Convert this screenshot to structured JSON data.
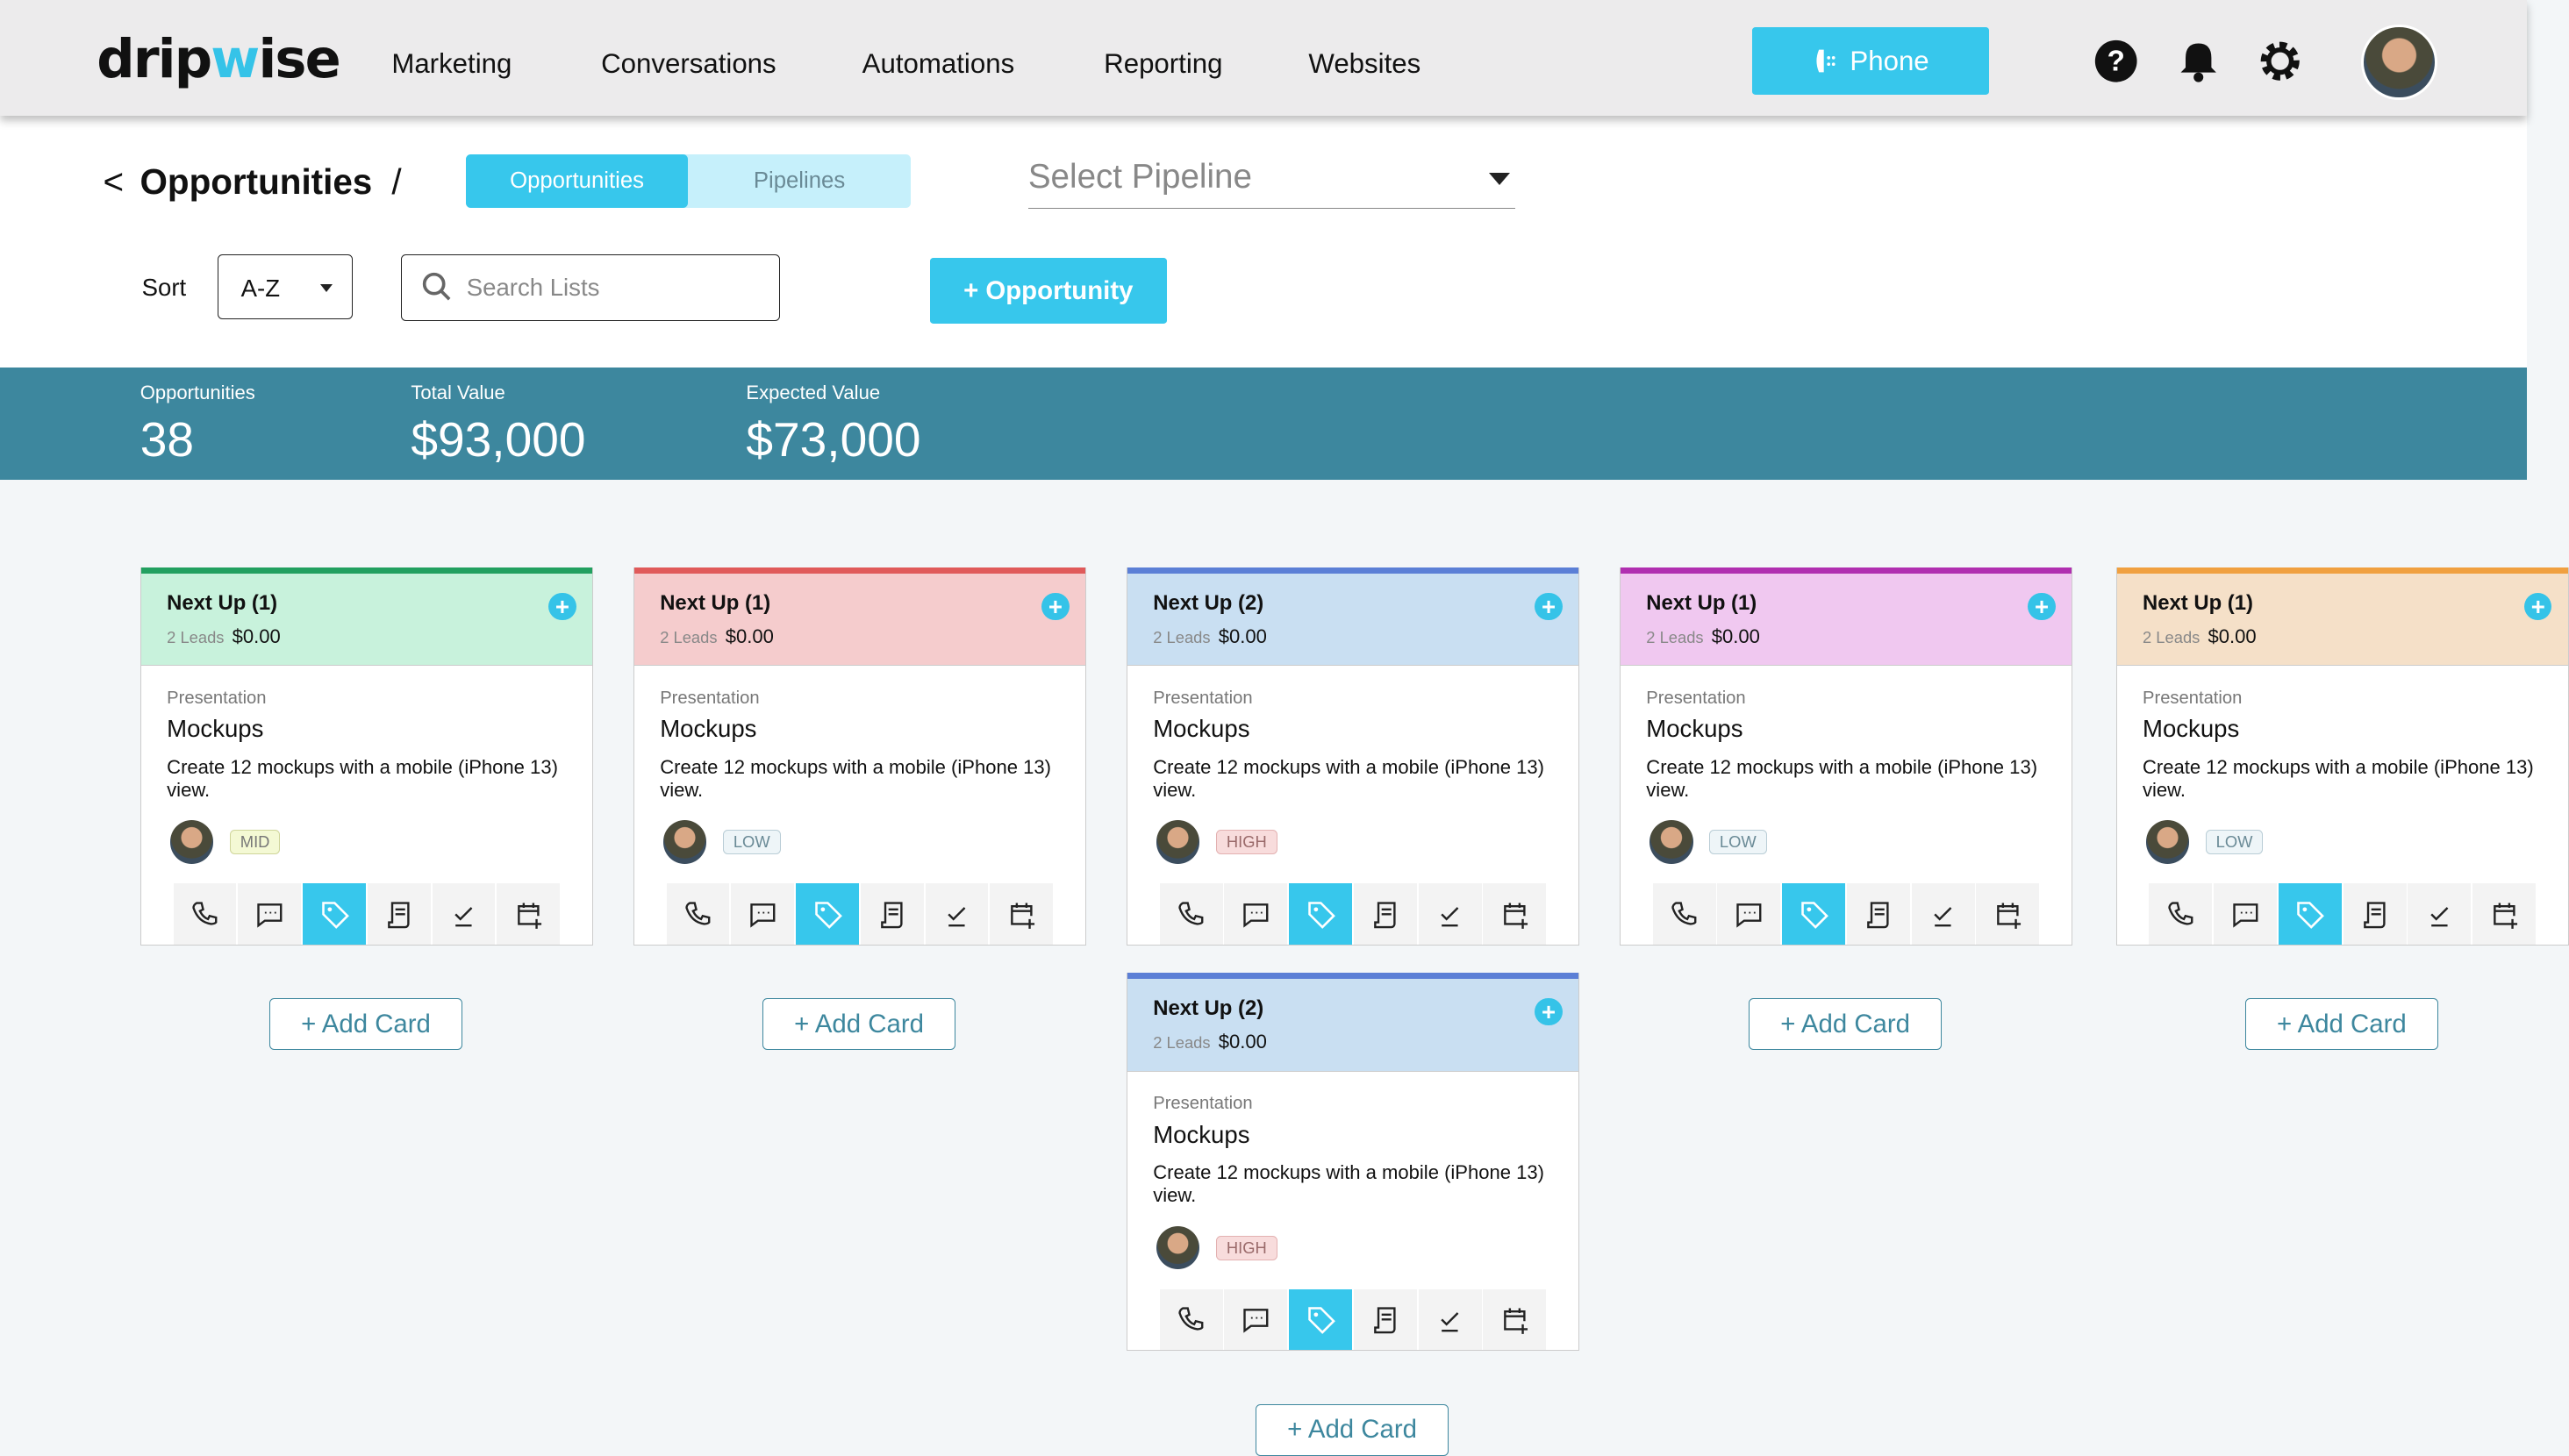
{
  "nav": {
    "logo": "dripwise",
    "items": [
      "Marketing",
      "Conversations",
      "Automations",
      "Reporting",
      "Websites"
    ],
    "phone": "Phone"
  },
  "header": {
    "title": "Opportunities",
    "separator": "/",
    "tabs": [
      "Opportunities",
      "Pipelines"
    ],
    "pipeline_placeholder": "Select Pipeline",
    "sort_label": "Sort",
    "sort_value": "A-Z",
    "search_placeholder": "Search Lists",
    "add_button": "+ Opportunity"
  },
  "stats": [
    {
      "label": "Opportunities",
      "value": "38"
    },
    {
      "label": "Total Value",
      "value": "$93,000"
    },
    {
      "label": "Expected Value",
      "value": "$73,000"
    }
  ],
  "add_card_label": "+ Add Card",
  "columns": [
    {
      "accent": "#22a060",
      "bg": "#c8f2dc",
      "cards": [
        {
          "title": "Next Up (1)",
          "leads": "2 Leads",
          "amount": "$0.00",
          "category": "Presentation",
          "name": "Mockups",
          "desc": "Create 12 mockups with a mobile (iPhone 13) view.",
          "priority": "MID"
        }
      ]
    },
    {
      "accent": "#e05a5a",
      "bg": "#f5cccd",
      "cards": [
        {
          "title": "Next Up (1)",
          "leads": "2 Leads",
          "amount": "$0.00",
          "category": "Presentation",
          "name": "Mockups",
          "desc": "Create 12 mockups with a mobile (iPhone 13) view.",
          "priority": "LOW"
        }
      ]
    },
    {
      "accent": "#5b7fd6",
      "bg": "#c9dff2",
      "cards": [
        {
          "title": "Next Up (2)",
          "leads": "2 Leads",
          "amount": "$0.00",
          "category": "Presentation",
          "name": "Mockups",
          "desc": "Create 12 mockups with a mobile (iPhone 13) view.",
          "priority": "HIGH"
        },
        {
          "title": "Next Up (2)",
          "leads": "2 Leads",
          "amount": "$0.00",
          "category": "Presentation",
          "name": "Mockups",
          "desc": "Create 12 mockups with a mobile (iPhone 13) view.",
          "priority": "HIGH"
        }
      ]
    },
    {
      "accent": "#b02fb0",
      "bg": "#f0c8f0",
      "cards": [
        {
          "title": "Next Up (1)",
          "leads": "2 Leads",
          "amount": "$0.00",
          "category": "Presentation",
          "name": "Mockups",
          "desc": "Create 12 mockups with a mobile (iPhone 13) view.",
          "priority": "LOW"
        }
      ]
    },
    {
      "accent": "#f0a040",
      "bg": "#f5e0c8",
      "cards": [
        {
          "title": "Next Up (1)",
          "leads": "2 Leads",
          "amount": "$0.00",
          "category": "Presentation",
          "name": "Mockups",
          "desc": "Create 12 mockups with a mobile (iPhone 13) view.",
          "priority": "LOW"
        }
      ]
    }
  ],
  "actions": [
    "phone-icon",
    "message-icon",
    "tag-icon",
    "receipt-icon",
    "check-icon",
    "calendar-add-icon"
  ]
}
